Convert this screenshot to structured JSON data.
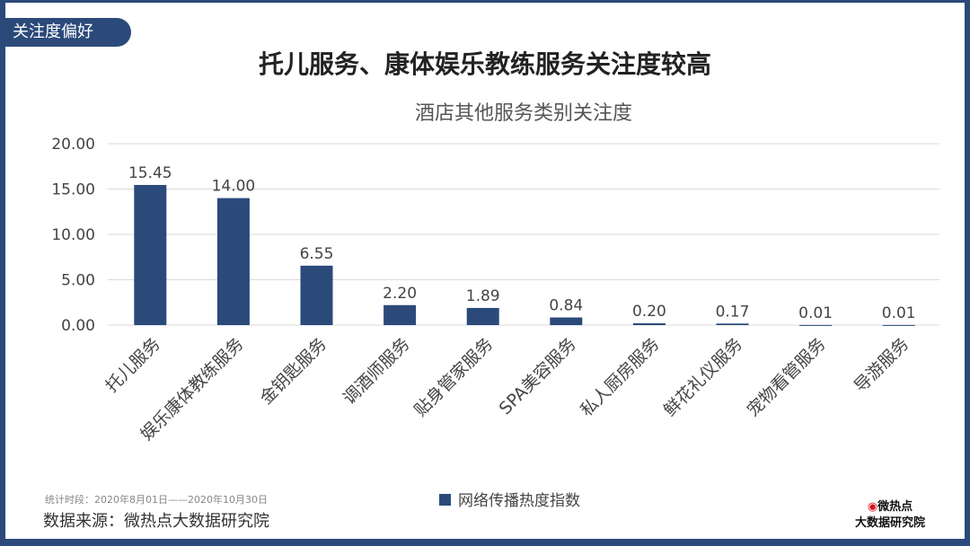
{
  "tag": "关注度偏好",
  "title": "托儿服务、康体娱乐教练服务关注度较高",
  "note": "统计时段：2020年8月01日——2020年10月30日",
  "source": "数据来源：微热点大数据研究院",
  "logo": {
    "line1": "微热点",
    "line2": "大数据研究院"
  },
  "chart_data": {
    "type": "bar",
    "title": "酒店其他服务类别关注度",
    "categories": [
      "托儿服务",
      "娱乐康体教练服务",
      "金钥匙服务",
      "调酒师服务",
      "贴身管家服务",
      "SPA美容服务",
      "私人厨房服务",
      "鲜花礼仪服务",
      "宠物看管服务",
      "导游服务"
    ],
    "series": [
      {
        "name": "网络传播热度指数",
        "values": [
          15.45,
          14.0,
          6.55,
          2.2,
          1.89,
          0.84,
          0.2,
          0.17,
          0.01,
          0.01
        ]
      }
    ],
    "yticks": [
      "0.00",
      "5.00",
      "10.00",
      "15.00",
      "20.00"
    ],
    "ylim": [
      0,
      20
    ],
    "grid": true,
    "legend": "bottom",
    "color": "#2b4a7a"
  }
}
